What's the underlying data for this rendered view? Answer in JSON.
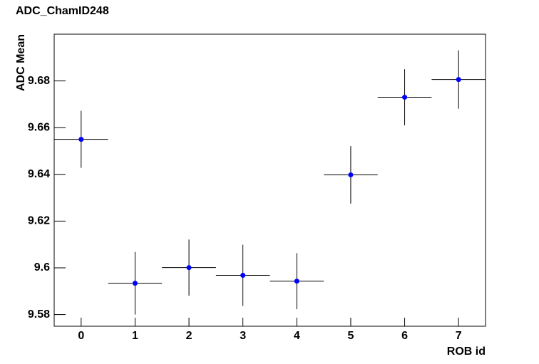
{
  "chart_data": {
    "type": "errorbar",
    "title": "ADC_ChamID248",
    "x_label": "ROB id",
    "y_label": "ADC Mean",
    "x": [
      0,
      1,
      2,
      3,
      4,
      5,
      6,
      7
    ],
    "values": [
      9.655,
      9.5934,
      9.6001,
      9.5968,
      9.5943,
      9.6398,
      9.673,
      9.6806
    ],
    "errors": [
      0.0122,
      0.0134,
      0.012,
      0.0131,
      0.012,
      0.0123,
      0.012,
      0.0125
    ],
    "xerr": 0.5,
    "color": "#0000ff",
    "xlim": [
      -0.5,
      7.5
    ],
    "xticks": [
      0,
      1,
      2,
      3,
      4,
      5,
      6,
      7
    ],
    "ylim": [
      9.575,
      9.7
    ],
    "yticks": [
      9.58,
      9.6,
      9.62,
      9.64,
      9.66,
      9.68
    ]
  }
}
